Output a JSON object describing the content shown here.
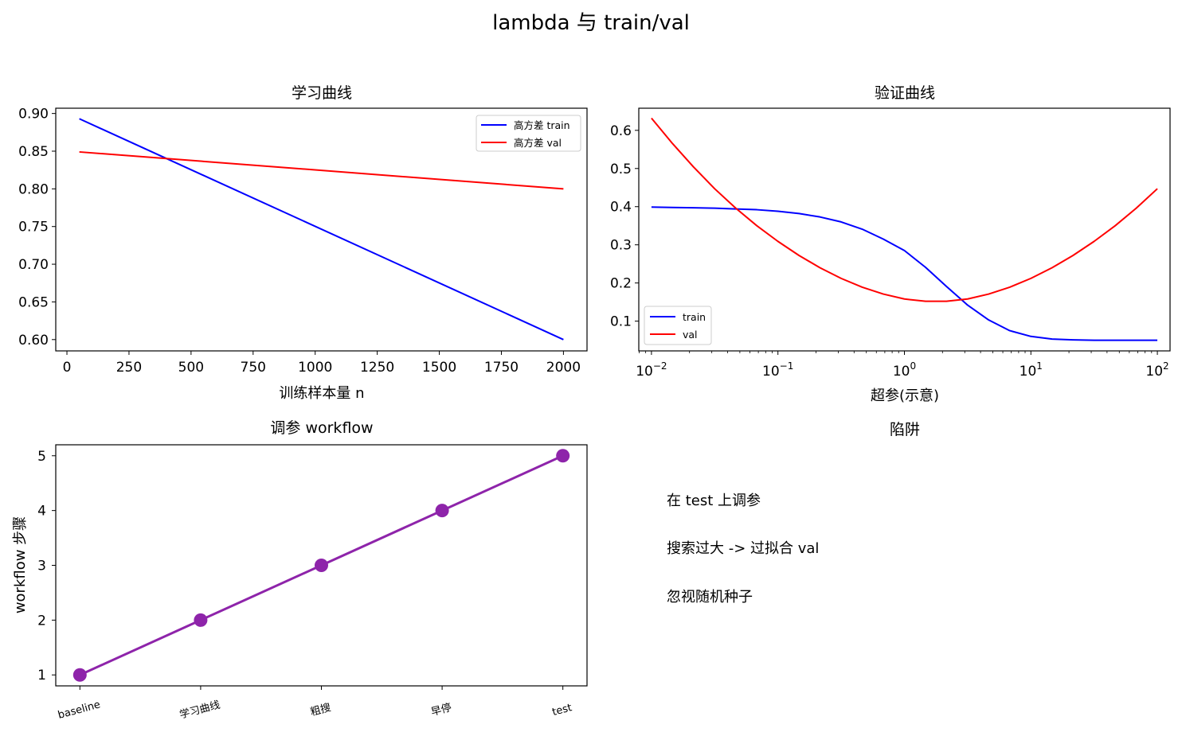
{
  "suptitle": "lambda 与 train/val",
  "colors": {
    "train": "#0000ff",
    "val": "#ff0000",
    "workflow": "#8e24aa",
    "axis": "#000000"
  },
  "charts": [
    {
      "type": "line",
      "title": "学习曲线",
      "xlabel": "训练样本量 n",
      "ylabel": "",
      "xlim": [
        -45,
        2095
      ],
      "ylim": [
        0.585,
        0.907
      ],
      "xticks": [
        0,
        250,
        500,
        750,
        1000,
        1250,
        1500,
        1750,
        2000
      ],
      "xtick_labels": [
        "0",
        "250",
        "500",
        "750",
        "1000",
        "1250",
        "1500",
        "1750",
        "2000"
      ],
      "yticks": [
        0.6,
        0.65,
        0.7,
        0.75,
        0.8,
        0.85,
        0.9
      ],
      "ytick_labels": [
        "0.60",
        "0.65",
        "0.70",
        "0.75",
        "0.80",
        "0.85",
        "0.90"
      ],
      "legend_position": "upper right",
      "series": [
        {
          "name": "高方差 train",
          "color": "#0000ff",
          "x": [
            50,
            2000
          ],
          "y": [
            0.893,
            0.6
          ]
        },
        {
          "name": "高方差 val",
          "color": "#ff0000",
          "x": [
            50,
            2000
          ],
          "y": [
            0.849,
            0.8
          ]
        }
      ]
    },
    {
      "type": "line",
      "title": "验证曲线",
      "xlabel": "超参(示意)",
      "ylabel": "",
      "xscale": "log",
      "xlim": [
        0.00794,
        126
      ],
      "ylim": [
        0.022,
        0.658
      ],
      "xticks": [
        0.01,
        0.1,
        1,
        10,
        100
      ],
      "xtick_labels": [
        {
          "base": "10",
          "exp": "−2"
        },
        {
          "base": "10",
          "exp": "−1"
        },
        {
          "base": "10",
          "exp": "0"
        },
        {
          "base": "10",
          "exp": "1"
        },
        {
          "base": "10",
          "exp": "2"
        }
      ],
      "yticks": [
        0.1,
        0.2,
        0.3,
        0.4,
        0.5,
        0.6
      ],
      "ytick_labels": [
        "0.1",
        "0.2",
        "0.3",
        "0.4",
        "0.5",
        "0.6"
      ],
      "legend_position": "lower left",
      "series": [
        {
          "name": "train",
          "color": "#0000ff",
          "x": [
            0.01,
            0.0147,
            0.0215,
            0.0316,
            0.0464,
            0.0681,
            0.1,
            0.147,
            0.215,
            0.316,
            0.464,
            0.681,
            1.0,
            1.47,
            2.15,
            3.16,
            4.64,
            6.81,
            10,
            14.7,
            21.5,
            31.6,
            46.4,
            68.1,
            100
          ],
          "y": [
            0.399,
            0.398,
            0.397,
            0.396,
            0.394,
            0.392,
            0.388,
            0.382,
            0.373,
            0.36,
            0.341,
            0.315,
            0.285,
            0.241,
            0.191,
            0.142,
            0.103,
            0.075,
            0.06,
            0.053,
            0.051,
            0.05,
            0.05,
            0.05,
            0.05
          ]
        },
        {
          "name": "val",
          "color": "#ff0000",
          "x": [
            0.01,
            0.0147,
            0.0215,
            0.0316,
            0.0464,
            0.0681,
            0.1,
            0.147,
            0.215,
            0.316,
            0.464,
            0.681,
            1.0,
            1.47,
            2.15,
            3.16,
            4.64,
            6.81,
            10,
            14.7,
            21.5,
            31.6,
            46.4,
            68.1,
            100
          ],
          "y": [
            0.632,
            0.565,
            0.504,
            0.447,
            0.396,
            0.35,
            0.309,
            0.272,
            0.24,
            0.212,
            0.189,
            0.171,
            0.158,
            0.152,
            0.152,
            0.158,
            0.171,
            0.189,
            0.212,
            0.24,
            0.272,
            0.309,
            0.35,
            0.396,
            0.447
          ]
        }
      ]
    },
    {
      "type": "line",
      "title": "调参 workflow",
      "xlabel": "",
      "ylabel": "workflow 步骤",
      "xlim": [
        -0.2,
        4.2
      ],
      "ylim": [
        0.8,
        5.2
      ],
      "categories": [
        "baseline",
        "学习曲线",
        "粗搜",
        "早停",
        "test"
      ],
      "yticks": [
        1,
        2,
        3,
        4,
        5
      ],
      "ytick_labels": [
        "1",
        "2",
        "3",
        "4",
        "5"
      ],
      "series": [
        {
          "color": "#8e24aa",
          "markers": true,
          "values": [
            1,
            2,
            3,
            4,
            5
          ]
        }
      ]
    }
  ],
  "pitfalls": {
    "title": "陷阱",
    "items": [
      "在 test 上调参",
      "搜索过大 -> 过拟合 val",
      "忽视随机种子"
    ]
  }
}
